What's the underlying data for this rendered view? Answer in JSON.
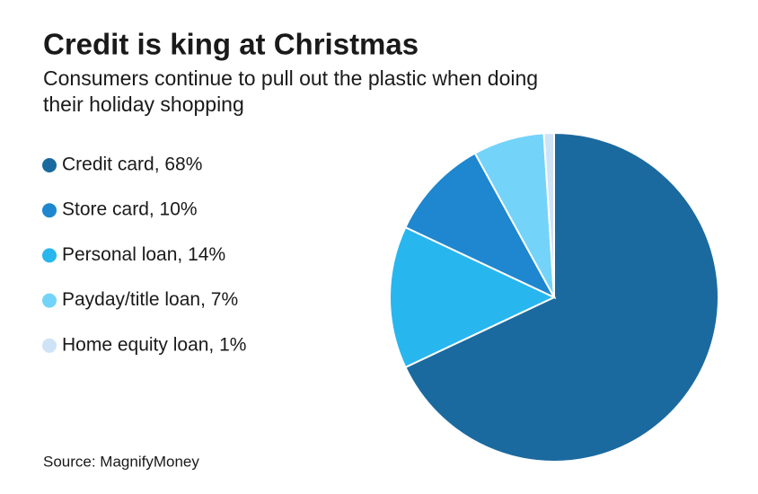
{
  "chart_data": {
    "type": "pie",
    "title": "Credit is king at Christmas",
    "subtitle": [
      "Consumers continue to pull out the plastic when doing",
      "their holiday shopping"
    ],
    "values": [
      68,
      10,
      14,
      7,
      1
    ],
    "value_labels": [
      "Credit card, 68%",
      "Store card, 10%",
      "Personal loan, 14%",
      "Payday/title loan, 7%",
      "Home equity loan, 1%"
    ],
    "colors": [
      "#1b6a9f",
      "#1e87cf",
      "#28b6ef",
      "#74d3f9",
      "#cfe3f7"
    ],
    "source": "Source: MagnifyMoney"
  }
}
